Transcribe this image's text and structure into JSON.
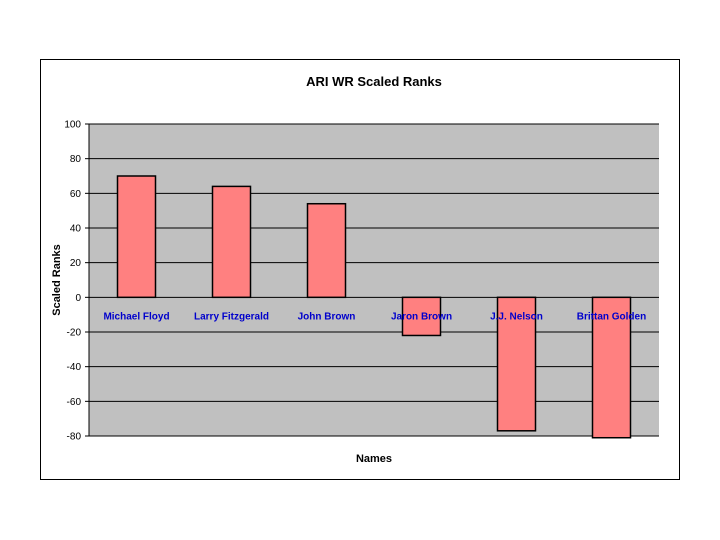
{
  "chart_data": {
    "type": "bar",
    "title": "ARI WR Scaled Ranks",
    "xlabel": "Names",
    "ylabel": "Scaled Ranks",
    "categories": [
      "Michael Floyd",
      "Larry Fitzgerald",
      "John Brown",
      "Jaron Brown",
      "J.J. Nelson",
      "Brittan Golden"
    ],
    "values": [
      70,
      64,
      54,
      -22,
      -77,
      -81
    ],
    "ylim": [
      -80,
      100
    ],
    "yticks": [
      100,
      80,
      60,
      40,
      20,
      0,
      -20,
      -40,
      -60,
      -80
    ],
    "grid": true,
    "colors": {
      "bar_fill": "#FF8080",
      "bar_stroke": "#000000",
      "plot_background": "#C0C0C0",
      "category_label": "#0000CC",
      "gridline": "#000000"
    }
  }
}
